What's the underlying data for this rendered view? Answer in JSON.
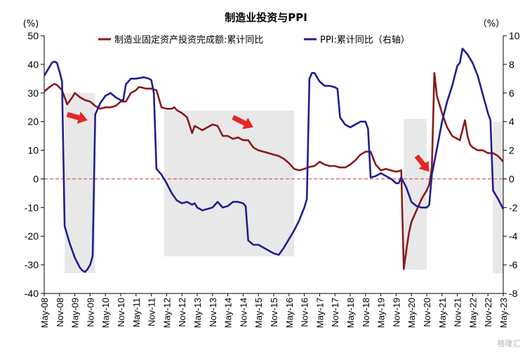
{
  "chart_data": {
    "type": "line",
    "title": "制造业投资与PPI",
    "left_unit": "(%)",
    "right_unit": "（%）",
    "watermark": "格隆汇",
    "x_labels": [
      "May-08",
      "Nov-08",
      "May-09",
      "Nov-09",
      "May-10",
      "Nov-10",
      "May-11",
      "Nov-11",
      "May-12",
      "Nov-12",
      "May-13",
      "Nov-13",
      "May-14",
      "Nov-14",
      "May-15",
      "Nov-15",
      "May-16",
      "Nov-16",
      "May-17",
      "Nov-17",
      "May-18",
      "Nov-18",
      "May-19",
      "Nov-19",
      "May-20",
      "Nov-20",
      "May-21",
      "Nov-21",
      "May-22",
      "Nov-22",
      "May-23"
    ],
    "y_left": {
      "min": -40,
      "max": 50,
      "step": 10
    },
    "y_right": {
      "min": -8,
      "max": 10,
      "step": 2
    },
    "shaded_periods": [
      [
        "Jan-09",
        "Jan-10"
      ],
      [
        "Apr-12",
        "Jul-16"
      ],
      [
        "Feb-20",
        "Nov-20"
      ],
      [
        "Jan-23",
        "May-23"
      ]
    ],
    "colors": {
      "investment": "#8b1a1a",
      "ppi": "#1f1f8f",
      "shade": "#e8e8e8",
      "zero_line": "#e06666",
      "arrow": "#e32626"
    },
    "series": [
      {
        "name": "制造业固定资产投资完成额:累计同比",
        "axis": "left",
        "points": [
          [
            "May-08",
            30.5
          ],
          [
            "Jul-08",
            32
          ],
          [
            "Sep-08",
            33.2
          ],
          [
            "Oct-08",
            32.8
          ],
          [
            "Dec-08",
            31
          ],
          [
            "Feb-09",
            26
          ],
          [
            "Apr-09",
            28.5
          ],
          [
            "May-09",
            30
          ],
          [
            "Jul-09",
            28.5
          ],
          [
            "Sep-09",
            27.5
          ],
          [
            "Nov-09",
            27
          ],
          [
            "Jan-10",
            25.5
          ],
          [
            "Mar-10",
            24.5
          ],
          [
            "May-10",
            25
          ],
          [
            "Jul-10",
            25
          ],
          [
            "Sep-10",
            25.5
          ],
          [
            "Nov-10",
            27
          ],
          [
            "Jan-11",
            27
          ],
          [
            "Mar-11",
            30
          ],
          [
            "May-11",
            31
          ],
          [
            "Jun-11",
            32
          ],
          [
            "Jul-11",
            32
          ],
          [
            "Sep-11",
            31.5
          ],
          [
            "Nov-11",
            31.5
          ],
          [
            "Jan-12",
            31
          ],
          [
            "Mar-12",
            25
          ],
          [
            "May-12",
            24.5
          ],
          [
            "Jul-12",
            24.5
          ],
          [
            "Aug-12",
            25
          ],
          [
            "Sep-12",
            24
          ],
          [
            "Nov-12",
            23
          ],
          [
            "Jan-13",
            21.5
          ],
          [
            "Mar-13",
            16
          ],
          [
            "Apr-13",
            18.5
          ],
          [
            "May-13",
            18
          ],
          [
            "Jul-13",
            17
          ],
          [
            "Sep-13",
            18
          ],
          [
            "Nov-13",
            19
          ],
          [
            "Jan-14",
            18.5
          ],
          [
            "Mar-14",
            15
          ],
          [
            "May-14",
            15
          ],
          [
            "Jul-14",
            14
          ],
          [
            "Sep-14",
            14.5
          ],
          [
            "Nov-14",
            13.5
          ],
          [
            "Jan-15",
            13.5
          ],
          [
            "Mar-15",
            11
          ],
          [
            "May-15",
            10
          ],
          [
            "Jul-15",
            9.5
          ],
          [
            "Sep-15",
            9
          ],
          [
            "Nov-15",
            8.5
          ],
          [
            "Jan-16",
            8
          ],
          [
            "Mar-16",
            7
          ],
          [
            "May-16",
            5.5
          ],
          [
            "Jul-16",
            3.5
          ],
          [
            "Sep-16",
            3
          ],
          [
            "Nov-16",
            3.5
          ],
          [
            "Jan-17",
            4.2
          ],
          [
            "Mar-17",
            4.5
          ],
          [
            "May-17",
            6
          ],
          [
            "Jun-17",
            5.5
          ],
          [
            "Jul-17",
            5
          ],
          [
            "Sep-17",
            4.5
          ],
          [
            "Nov-17",
            4.5
          ],
          [
            "Jan-18",
            4
          ],
          [
            "Mar-18",
            4
          ],
          [
            "May-18",
            5
          ],
          [
            "Jul-18",
            6.5
          ],
          [
            "Aug-18",
            7.5
          ],
          [
            "Sep-18",
            8.5
          ],
          [
            "Nov-18",
            9.5
          ],
          [
            "Jan-19",
            9.5
          ],
          [
            "Mar-19",
            5
          ],
          [
            "May-19",
            3
          ],
          [
            "Jul-19",
            3.5
          ],
          [
            "Sep-19",
            3
          ],
          [
            "Nov-19",
            2.5
          ],
          [
            "Jan-20",
            3
          ],
          [
            "Feb-20",
            -31.5
          ],
          [
            "Mar-20",
            -25
          ],
          [
            "Apr-20",
            -19
          ],
          [
            "May-20",
            -15
          ],
          [
            "Jul-20",
            -11
          ],
          [
            "Sep-20",
            -7
          ],
          [
            "Nov-20",
            -4
          ],
          [
            "Dec-20",
            -2
          ],
          [
            "Jan-21",
            4
          ],
          [
            "Feb-21",
            37
          ],
          [
            "Mar-21",
            29
          ],
          [
            "May-21",
            23
          ],
          [
            "Jul-21",
            18
          ],
          [
            "Sep-21",
            15
          ],
          [
            "Nov-21",
            14
          ],
          [
            "Dec-21",
            13.5
          ],
          [
            "Feb-22",
            20.5
          ],
          [
            "Mar-22",
            15
          ],
          [
            "Apr-22",
            12
          ],
          [
            "May-22",
            11
          ],
          [
            "Jul-22",
            10
          ],
          [
            "Sep-22",
            10
          ],
          [
            "Nov-22",
            9
          ],
          [
            "Jan-23",
            9
          ],
          [
            "Mar-23",
            8
          ],
          [
            "May-23",
            6
          ]
        ]
      },
      {
        "name": "PPI:累计同比（右轴）",
        "axis": "right",
        "points": [
          [
            "May-08",
            7.2
          ],
          [
            "Jul-08",
            7.8
          ],
          [
            "Aug-08",
            8.1
          ],
          [
            "Sep-08",
            8.2
          ],
          [
            "Oct-08",
            8.1
          ],
          [
            "Nov-08",
            7.5
          ],
          [
            "Dec-08",
            6.8
          ],
          [
            "Jan-09",
            -3.3
          ],
          [
            "Mar-09",
            -4.5
          ],
          [
            "May-09",
            -5.5
          ],
          [
            "Jul-09",
            -6.2
          ],
          [
            "Aug-09",
            -6.4
          ],
          [
            "Sep-09",
            -6.5
          ],
          [
            "Oct-09",
            -6.3
          ],
          [
            "Nov-09",
            -6.0
          ],
          [
            "Dec-09",
            -5.4
          ],
          [
            "Jan-10",
            4.5
          ],
          [
            "Mar-10",
            5.3
          ],
          [
            "May-10",
            5.8
          ],
          [
            "Jul-10",
            6.0
          ],
          [
            "Sep-10",
            5.7
          ],
          [
            "Nov-10",
            5.5
          ],
          [
            "Dec-10",
            5.5
          ],
          [
            "Jan-11",
            6.6
          ],
          [
            "Mar-11",
            7.0
          ],
          [
            "May-11",
            7.0
          ],
          [
            "Aug-11",
            7.1
          ],
          [
            "Oct-11",
            7.0
          ],
          [
            "Nov-11",
            6.9
          ],
          [
            "Dec-11",
            6.0
          ],
          [
            "Jan-12",
            0.7
          ],
          [
            "Mar-12",
            0.3
          ],
          [
            "May-12",
            -0.3
          ],
          [
            "Jul-12",
            -1.0
          ],
          [
            "Sep-12",
            -1.5
          ],
          [
            "Nov-12",
            -1.7
          ],
          [
            "Jan-13",
            -1.6
          ],
          [
            "Mar-13",
            -1.8
          ],
          [
            "Apr-13",
            -1.7
          ],
          [
            "May-13",
            -2.0
          ],
          [
            "Jul-13",
            -2.2
          ],
          [
            "Sep-13",
            -2.1
          ],
          [
            "Nov-13",
            -2.0
          ],
          [
            "Jan-14",
            -1.6
          ],
          [
            "Mar-14",
            -2.0
          ],
          [
            "May-14",
            -1.9
          ],
          [
            "Jul-14",
            -1.6
          ],
          [
            "Sep-14",
            -1.6
          ],
          [
            "Nov-14",
            -1.7
          ],
          [
            "Dec-14",
            -1.9
          ],
          [
            "Jan-15",
            -4.3
          ],
          [
            "Mar-15",
            -4.6
          ],
          [
            "May-15",
            -4.6
          ],
          [
            "Jul-15",
            -4.8
          ],
          [
            "Sep-15",
            -5.0
          ],
          [
            "Nov-15",
            -5.2
          ],
          [
            "Jan-16",
            -5.3
          ],
          [
            "Mar-16",
            -4.8
          ],
          [
            "May-16",
            -4.2
          ],
          [
            "Jul-16",
            -3.6
          ],
          [
            "Sep-16",
            -2.9
          ],
          [
            "Nov-16",
            -2.0
          ],
          [
            "Dec-16",
            -1.4
          ],
          [
            "Jan-17",
            7.0
          ],
          [
            "Feb-17",
            7.4
          ],
          [
            "Mar-17",
            7.4
          ],
          [
            "May-17",
            6.8
          ],
          [
            "Jul-17",
            6.5
          ],
          [
            "Sep-17",
            6.5
          ],
          [
            "Nov-17",
            6.4
          ],
          [
            "Dec-17",
            6.3
          ],
          [
            "Jan-18",
            4.3
          ],
          [
            "Mar-18",
            3.8
          ],
          [
            "May-18",
            3.6
          ],
          [
            "Jul-18",
            3.8
          ],
          [
            "Sep-18",
            4.0
          ],
          [
            "Nov-18",
            4.0
          ],
          [
            "Dec-18",
            3.5
          ],
          [
            "Jan-19",
            0.1
          ],
          [
            "Mar-19",
            0.2
          ],
          [
            "May-19",
            0.4
          ],
          [
            "Jul-19",
            0.2
          ],
          [
            "Sep-19",
            0.0
          ],
          [
            "Nov-19",
            -0.3
          ],
          [
            "Dec-19",
            -0.3
          ],
          [
            "Jan-20",
            0.1
          ],
          [
            "Mar-20",
            -0.6
          ],
          [
            "Apr-20",
            -1.1
          ],
          [
            "May-20",
            -1.6
          ],
          [
            "Jul-20",
            -1.9
          ],
          [
            "Sep-20",
            -2.0
          ],
          [
            "Nov-20",
            -2.0
          ],
          [
            "Dec-20",
            -1.8
          ],
          [
            "Jan-21",
            0.3
          ],
          [
            "Mar-21",
            2.1
          ],
          [
            "May-21",
            4.0
          ],
          [
            "Jul-21",
            5.4
          ],
          [
            "Sep-21",
            6.5
          ],
          [
            "Nov-21",
            7.9
          ],
          [
            "Dec-21",
            8.1
          ],
          [
            "Jan-22",
            9.1
          ],
          [
            "Mar-22",
            8.7
          ],
          [
            "May-22",
            8.1
          ],
          [
            "Jul-22",
            7.2
          ],
          [
            "Sep-22",
            5.9
          ],
          [
            "Nov-22",
            4.6
          ],
          [
            "Dec-22",
            4.1
          ],
          [
            "Jan-23",
            -0.8
          ],
          [
            "Mar-23",
            -1.4
          ],
          [
            "May-23",
            -2.1
          ]
        ]
      }
    ],
    "arrows": [
      {
        "from": [
          "Feb-09",
          22.5
        ],
        "to": [
          "Oct-09",
          20.5
        ]
      },
      {
        "from": [
          "Jul-14",
          21.5
        ],
        "to": [
          "Mar-15",
          18.0
        ]
      },
      {
        "from": [
          "Jul-20",
          8.0
        ],
        "to": [
          "Dec-20",
          2.5
        ]
      }
    ]
  }
}
